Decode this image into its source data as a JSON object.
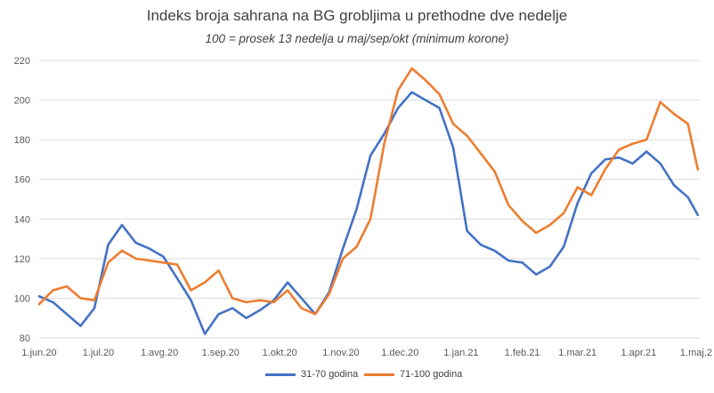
{
  "chart_data": {
    "type": "line",
    "title": "Indeks broja sahrana na BG grobljima u prethodne dve nedelje",
    "subtitle": "100 = prosek 13 nedelja u maj/sep/okt (minimum korone)",
    "xlabel": "",
    "ylabel": "",
    "ylim": [
      80,
      220
    ],
    "yticks": [
      80,
      100,
      120,
      140,
      160,
      180,
      200,
      220
    ],
    "x_tick_labels": [
      "1.jun.20",
      "1.jul.20",
      "1.avg.20",
      "1.sep.20",
      "1.okt.20",
      "1.nov.20",
      "1.dec.20",
      "1.jan.21",
      "1.feb.21",
      "1.mar.21",
      "1.apr.21",
      "1.maj.2"
    ],
    "grid": true,
    "legend_position": "bottom",
    "x": [
      "2020-06-01",
      "2020-06-08",
      "2020-06-15",
      "2020-06-22",
      "2020-06-29",
      "2020-07-06",
      "2020-07-13",
      "2020-07-20",
      "2020-07-27",
      "2020-08-03",
      "2020-08-10",
      "2020-08-17",
      "2020-08-24",
      "2020-08-31",
      "2020-09-07",
      "2020-09-14",
      "2020-09-21",
      "2020-09-28",
      "2020-10-05",
      "2020-10-12",
      "2020-10-19",
      "2020-10-26",
      "2020-11-02",
      "2020-11-09",
      "2020-11-16",
      "2020-11-23",
      "2020-11-30",
      "2020-12-07",
      "2020-12-14",
      "2020-12-21",
      "2020-12-28",
      "2021-01-04",
      "2021-01-11",
      "2021-01-18",
      "2021-01-25",
      "2021-02-01",
      "2021-02-08",
      "2021-02-15",
      "2021-02-22",
      "2021-03-01",
      "2021-03-08",
      "2021-03-15",
      "2021-03-22",
      "2021-03-29",
      "2021-04-05",
      "2021-04-12",
      "2021-04-19",
      "2021-04-26",
      "2021-05-01"
    ],
    "series": [
      {
        "name": "31-70 godina",
        "color": "#4472C4",
        "values": [
          101,
          98,
          92,
          86,
          95,
          127,
          137,
          128,
          125,
          121,
          110,
          99,
          82,
          92,
          95,
          90,
          94,
          99,
          108,
          100,
          92,
          103,
          125,
          145,
          172,
          183,
          196,
          204,
          200,
          196,
          176,
          134,
          127,
          124,
          119,
          118,
          112,
          116,
          126,
          148,
          163,
          170,
          171,
          168,
          174,
          168,
          157,
          151,
          142
        ]
      },
      {
        "name": "71-100 godina",
        "color": "#ED7D31",
        "values": [
          97,
          104,
          106,
          100,
          99,
          118,
          124,
          120,
          119,
          118,
          117,
          104,
          108,
          114,
          100,
          98,
          99,
          98,
          104,
          95,
          92,
          102,
          120,
          126,
          140,
          178,
          205,
          216,
          210,
          203,
          188,
          182,
          173,
          164,
          147,
          139,
          133,
          137,
          143,
          156,
          152,
          165,
          175,
          178,
          180,
          199,
          193,
          188,
          165
        ]
      }
    ]
  }
}
